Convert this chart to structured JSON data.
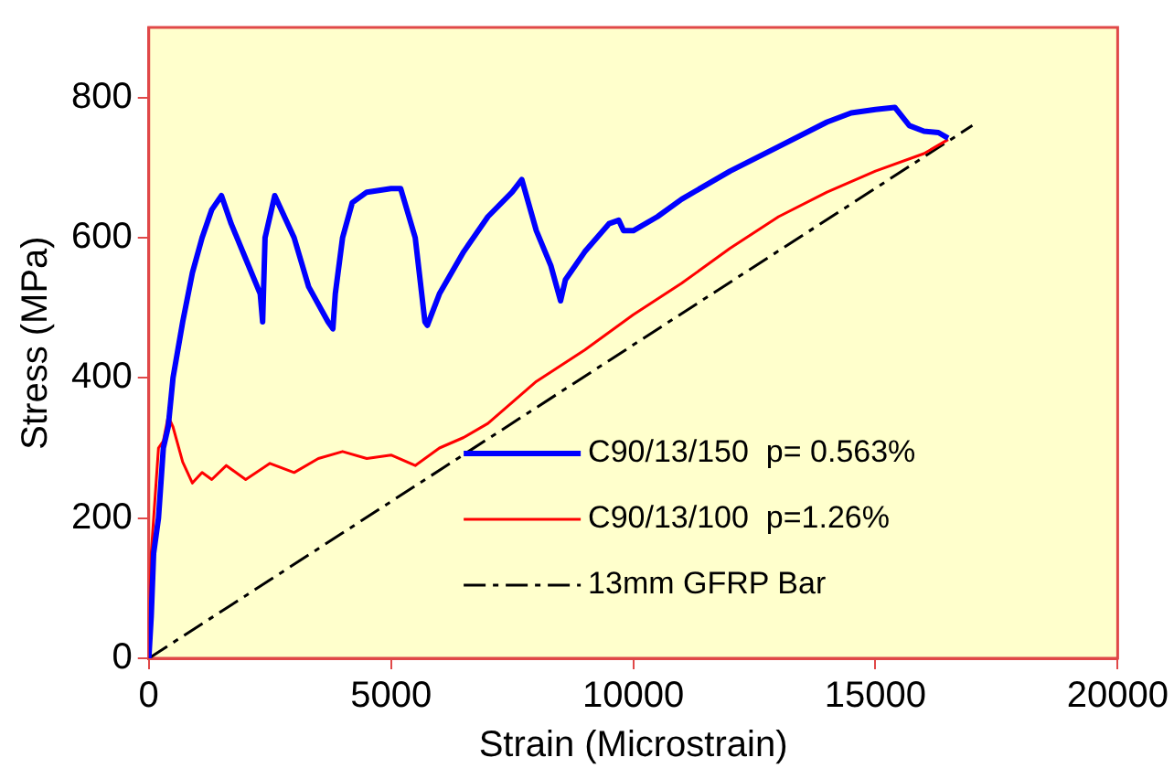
{
  "chart_data": {
    "type": "line",
    "xlabel": "Strain (Microstrain)",
    "ylabel": "Stress (MPa)",
    "xlim": [
      0,
      20000
    ],
    "xticks": [
      0,
      5000,
      10000,
      15000,
      20000
    ],
    "ylim": [
      0,
      900
    ],
    "yticks": [
      0,
      200,
      400,
      600,
      800
    ],
    "grid": false,
    "legend": "bottom right",
    "marker": "none",
    "series": [
      {
        "name": "C90/13/150  p= 0.563%",
        "color": "#0000ff",
        "line_style": "solid",
        "x": [
          0,
          50,
          100,
          200,
          300,
          400,
          500,
          700,
          900,
          1100,
          1300,
          1500,
          1700,
          2000,
          2300,
          2350,
          2400,
          2600,
          3000,
          3300,
          3700,
          3800,
          3850,
          4000,
          4200,
          4500,
          5000,
          5200,
          5500,
          5700,
          5750,
          6000,
          6500,
          7000,
          7500,
          7700,
          8000,
          8300,
          8500,
          8600,
          9000,
          9500,
          9700,
          9800,
          10000,
          10500,
          11000,
          12000,
          13000,
          14000,
          14500,
          15000,
          15400,
          15700,
          16000,
          16300,
          16500
        ],
        "values": [
          0,
          60,
          150,
          200,
          300,
          330,
          400,
          480,
          550,
          600,
          640,
          660,
          620,
          570,
          520,
          480,
          600,
          660,
          600,
          530,
          480,
          470,
          520,
          600,
          650,
          665,
          670,
          670,
          600,
          480,
          475,
          520,
          580,
          630,
          665,
          683,
          610,
          560,
          510,
          540,
          580,
          620,
          625,
          610,
          610,
          630,
          655,
          695,
          730,
          765,
          778,
          783,
          786,
          760,
          752,
          750,
          742
        ]
      },
      {
        "name": "C90/13/100  p=1.26%",
        "color": "#ff0000",
        "line_style": "solid",
        "x": [
          0,
          50,
          100,
          200,
          300,
          400,
          500,
          700,
          900,
          1100,
          1300,
          1600,
          2000,
          2500,
          3000,
          3500,
          4000,
          4500,
          5000,
          5500,
          6000,
          6500,
          7000,
          8000,
          9000,
          10000,
          11000,
          12000,
          13000,
          14000,
          15000,
          16000,
          16500
        ],
        "values": [
          0,
          150,
          200,
          300,
          310,
          345,
          330,
          280,
          250,
          265,
          255,
          275,
          255,
          278,
          265,
          285,
          295,
          285,
          290,
          275,
          300,
          315,
          335,
          395,
          440,
          490,
          535,
          585,
          630,
          665,
          695,
          720,
          740
        ]
      },
      {
        "name": "13mm GFRP Bar",
        "color": "#000000",
        "line_style": "dashed",
        "x": [
          0,
          17000
        ],
        "values": [
          0,
          760
        ]
      }
    ]
  }
}
